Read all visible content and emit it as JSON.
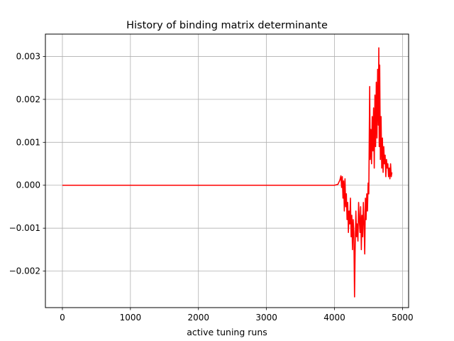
{
  "chart_data": {
    "type": "line",
    "title": "History of binding matrix determinante",
    "xlabel": "active tuning runs",
    "ylabel": "",
    "xlim": [
      -250,
      5090
    ],
    "ylim": [
      -0.00285,
      0.00352
    ],
    "xticks": [
      0,
      1000,
      2000,
      3000,
      4000,
      5000
    ],
    "xtick_labels": [
      "0",
      "1000",
      "2000",
      "3000",
      "4000",
      "5000"
    ],
    "yticks": [
      -0.002,
      -0.001,
      0.0,
      0.001,
      0.002,
      0.003
    ],
    "ytick_labels": [
      "−0.002",
      "−0.001",
      "0.000",
      "0.001",
      "0.002",
      "0.003"
    ],
    "grid": true,
    "series": [
      {
        "color": "#ff0000",
        "x": [
          0,
          500,
          1000,
          1500,
          2000,
          2500,
          3000,
          3500,
          4000,
          4050,
          4080,
          4095,
          4105,
          4115,
          4125,
          4135,
          4145,
          4155,
          4165,
          4175,
          4185,
          4195,
          4205,
          4215,
          4225,
          4235,
          4245,
          4255,
          4265,
          4275,
          4285,
          4295,
          4305,
          4315,
          4325,
          4335,
          4345,
          4355,
          4365,
          4375,
          4385,
          4395,
          4405,
          4415,
          4425,
          4435,
          4445,
          4455,
          4465,
          4475,
          4485,
          4495,
          4505,
          4512,
          4518,
          4525,
          4535,
          4545,
          4555,
          4565,
          4575,
          4585,
          4595,
          4605,
          4615,
          4625,
          4635,
          4645,
          4652,
          4658,
          4665,
          4675,
          4685,
          4695,
          4705,
          4715,
          4725,
          4735,
          4745,
          4755,
          4765,
          4775,
          4785,
          4795,
          4805,
          4815,
          4825,
          4835,
          4845
        ],
        "y": [
          0,
          0,
          0,
          0,
          0,
          0,
          0,
          0,
          0,
          2e-05,
          0.00012,
          0.00022,
          -5e-05,
          0.0002,
          -0.0003,
          0.0001,
          -0.0006,
          0.00015,
          -0.0005,
          -0.0002,
          -0.0008,
          -0.0004,
          -0.0011,
          -0.0006,
          -0.0009,
          -0.0003,
          -0.0012,
          -0.0007,
          -0.0015,
          -0.0008,
          -0.0011,
          -0.0026,
          -0.0014,
          -0.0006,
          -0.0012,
          -0.0009,
          -0.0013,
          -0.0004,
          -0.0008,
          -0.0011,
          -0.0005,
          -0.0015,
          -0.0007,
          -0.0012,
          -0.0004,
          -0.0009,
          -0.0016,
          -0.0003,
          -0.0008,
          -0.0002,
          -0.0006,
          5e-05,
          -0.0002,
          0.0012,
          0.0023,
          0.0006,
          0.0013,
          0.0005,
          0.0016,
          0.0008,
          0.0018,
          0.0004,
          0.0021,
          0.0009,
          0.0024,
          0.0011,
          0.0027,
          0.0014,
          0.0032,
          0.0009,
          0.0028,
          0.0006,
          0.0016,
          0.0004,
          0.0011,
          0.0003,
          0.0009,
          0.0005,
          0.0007,
          0.0002,
          0.0006,
          0.0004,
          0.0005,
          0.0002,
          0.0004,
          0.00015,
          0.0005,
          0.0002,
          0.0003
        ]
      }
    ]
  }
}
